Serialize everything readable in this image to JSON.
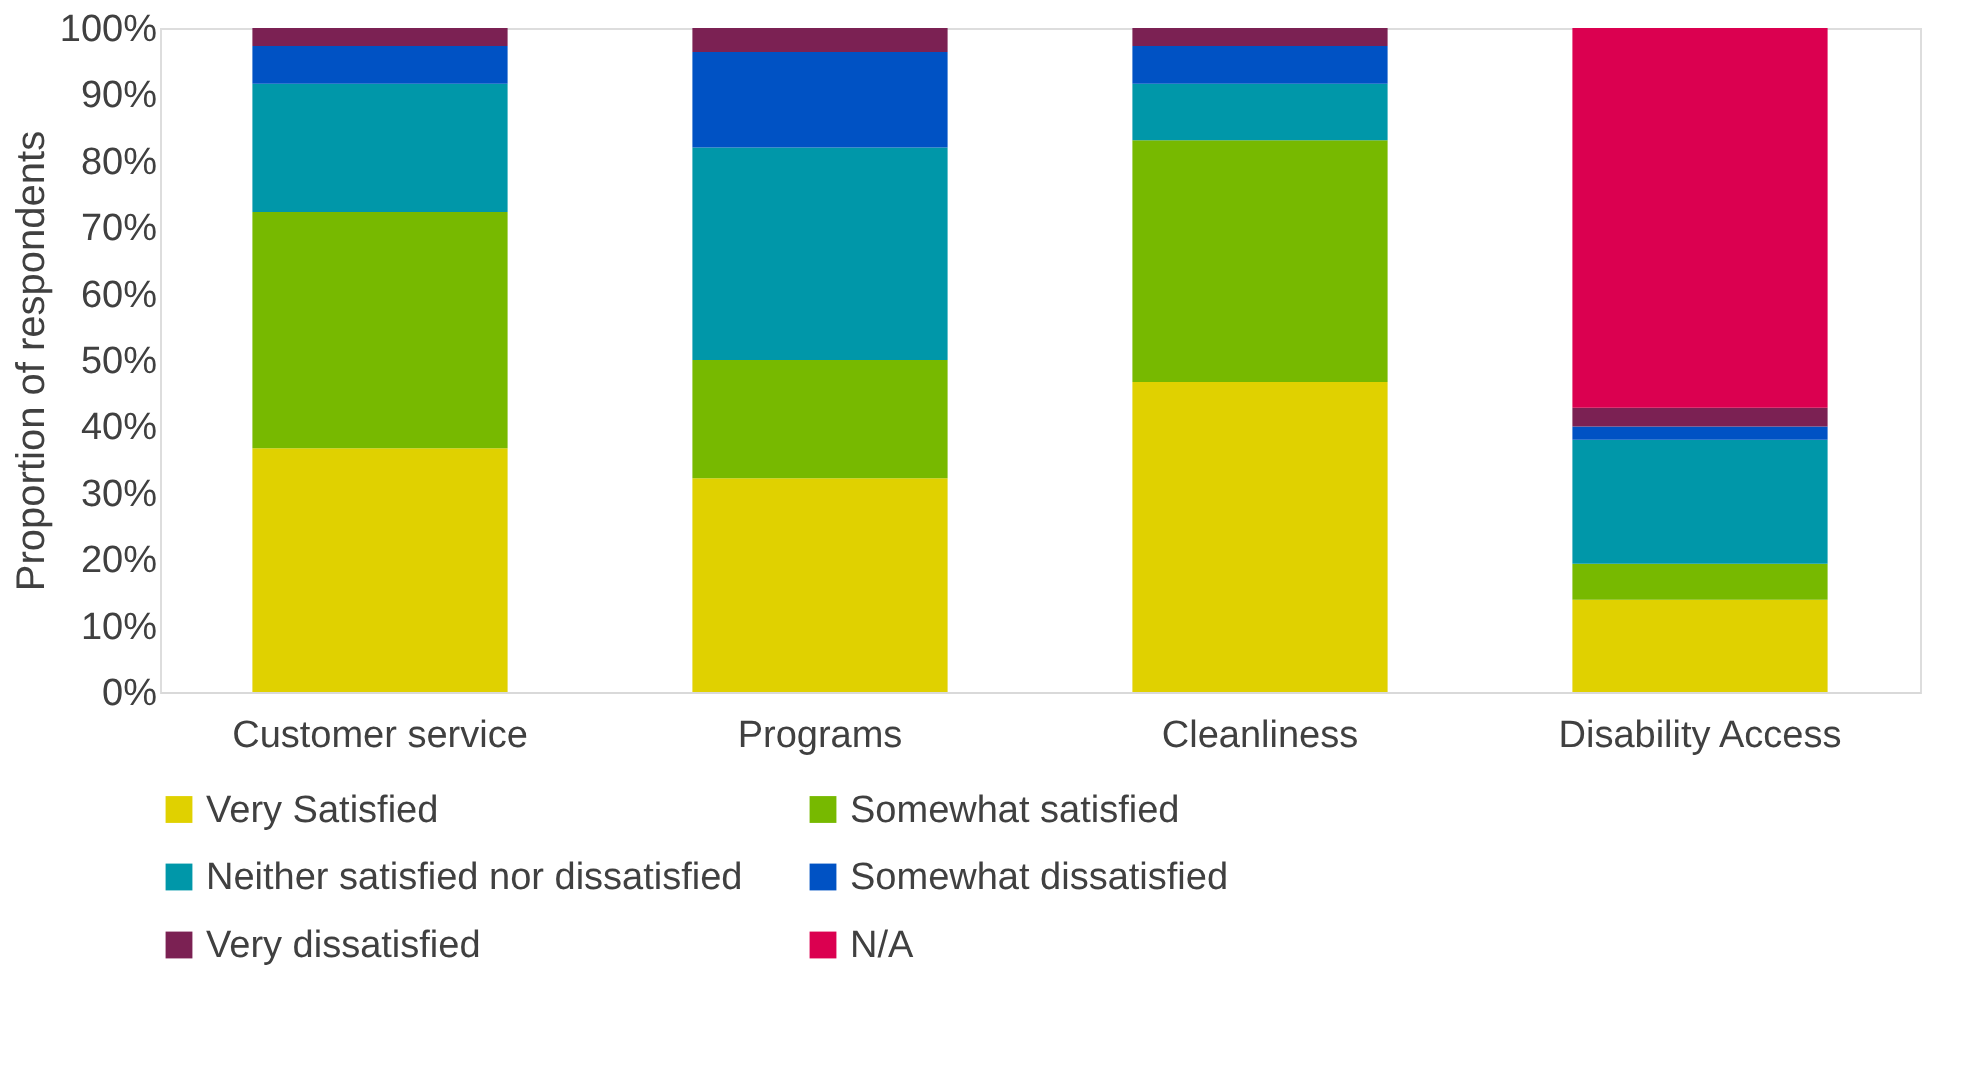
{
  "chart_data": {
    "type": "bar",
    "stacked": true,
    "ylabel": "Proportion of respondents",
    "categories": [
      "Customer service",
      "Programs",
      "Cleanliness",
      "Disability Access"
    ],
    "series": [
      {
        "name": "Very Satisfied",
        "color": "#e0d100",
        "values": [
          36.7,
          32.2,
          46.7,
          13.9
        ]
      },
      {
        "name": "Somewhat satisfied",
        "color": "#77b900",
        "values": [
          35.6,
          17.8,
          36.4,
          5.4
        ]
      },
      {
        "name": "Neither satisfied nor dissatisfied",
        "color": "#0097a9",
        "values": [
          19.3,
          32.0,
          8.5,
          18.7
        ]
      },
      {
        "name": "Somewhat dissatisfied",
        "color": "#0052c4",
        "values": [
          5.7,
          14.4,
          5.7,
          2.0
        ]
      },
      {
        "name": "Very dissatisfied",
        "color": "#7b2153",
        "values": [
          2.7,
          3.6,
          2.7,
          2.8
        ]
      },
      {
        "name": "N/A",
        "color": "#db0050",
        "values": [
          0,
          0,
          0,
          57.2
        ]
      }
    ],
    "ylim": [
      0,
      100
    ],
    "yticks": [
      {
        "value": 0,
        "label": "0%"
      },
      {
        "value": 10,
        "label": "10%"
      },
      {
        "value": 20,
        "label": "20%"
      },
      {
        "value": 30,
        "label": "30%"
      },
      {
        "value": 40,
        "label": "40%"
      },
      {
        "value": 50,
        "label": "50%"
      },
      {
        "value": 60,
        "label": "60%"
      },
      {
        "value": 70,
        "label": "70%"
      },
      {
        "value": 80,
        "label": "80%"
      },
      {
        "value": 90,
        "label": "90%"
      },
      {
        "value": 100,
        "label": "100%"
      }
    ],
    "grid": false,
    "legend": "bottom"
  }
}
